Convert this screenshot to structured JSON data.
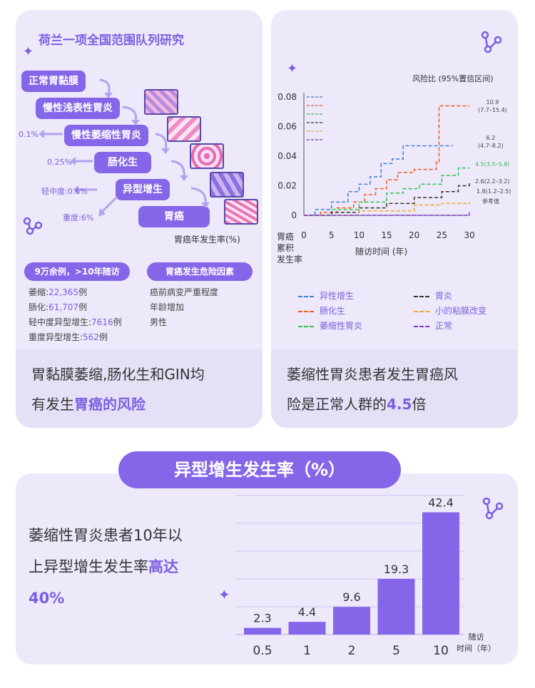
{
  "left_card": {
    "title": "荷兰一项全国范围队列研究",
    "steps": [
      "正常胃黏膜",
      "慢性浅表性胃炎",
      "慢性萎缩性胃炎",
      "肠化生",
      "异型增生",
      "胃癌"
    ],
    "rates": [
      "0.1%",
      "0.25%",
      "轻中度:0.6%",
      "重度:6%"
    ],
    "rate_caption": "胃癌年发生率(%)",
    "pill_cohort": "9万余例，>10年随访",
    "pill_risk": "胃癌发生危险因素",
    "cohort_stats": [
      {
        "label": "萎缩:",
        "value": "22,365",
        "suffix": "例"
      },
      {
        "label": "肠化:",
        "value": "61,707",
        "suffix": "例"
      },
      {
        "label": "轻中度异型增生:",
        "value": "7616",
        "suffix": "例"
      },
      {
        "label": "重度异型增生:",
        "value": "562",
        "suffix": "例"
      }
    ],
    "risk_factors": [
      "癌前病变严重程度",
      "年龄增加",
      "男性"
    ],
    "summary_line1": "胃黏膜萎缩,肠化生和GIN均",
    "summary_line2_a": "有发生",
    "summary_line2_b": "胃癌的风险"
  },
  "right_card": {
    "hr_header": "风险比 (95%置信区间)",
    "y_ticks": [
      "0.08",
      "0.06",
      "0.04",
      "0.02",
      "0"
    ],
    "x_ticks": [
      "0",
      "5",
      "10",
      "15",
      "20",
      "25",
      "30"
    ],
    "ylabel": [
      "胃癌",
      "累积",
      "发生率"
    ],
    "xlabel": "随访时间 (年)",
    "hr_labels": [
      {
        "v": "10.9",
        "ci": "(7.7–15.4)"
      },
      {
        "v": "6.2",
        "ci": "(4.7–8.2)"
      },
      {
        "v": "4.5(3.5–5.8)",
        "ci": ""
      },
      {
        "v": "2.6(2.2–3.2)",
        "ci": ""
      },
      {
        "v": "1.8(1.2–2.5)",
        "ci": ""
      },
      {
        "v": "参考值",
        "ci": ""
      }
    ],
    "legend": [
      {
        "name": "异性增生",
        "color": "#3b7fd9"
      },
      {
        "name": "肠化生",
        "color": "#f05a1a"
      },
      {
        "name": "萎缩性胃炎",
        "color": "#33c24a"
      },
      {
        "name": "胃炎",
        "color": "#3d3326"
      },
      {
        "name": "小的粘膜改变",
        "color": "#f5a623"
      },
      {
        "name": "正常",
        "color": "#7a33d6"
      }
    ],
    "summary_line1": "萎缩性胃炎患者发生胃癌风",
    "summary_line2_a": "险是正常人群的",
    "summary_line2_b": "4.5",
    "summary_line2_c": "倍"
  },
  "bottom": {
    "title": "异型增生发生率（%）",
    "text_line1": "萎缩性胃炎患者10年以",
    "text_line2_a": "上异型增生发生率",
    "text_line2_b": "高达",
    "text_line3": "40%",
    "x_axis_label_1": "随访",
    "x_axis_label_2": "时间（年）"
  },
  "chart_data": [
    {
      "type": "line",
      "title": "",
      "xlabel": "随访时间 (年)",
      "ylabel": "胃癌累积发生率",
      "xlim": [
        0,
        30
      ],
      "ylim": [
        0,
        0.08
      ],
      "series": [
        {
          "name": "异性增生",
          "color": "#3b7fd9",
          "points": [
            [
              0,
              0
            ],
            [
              2,
              0.004
            ],
            [
              5,
              0.009
            ],
            [
              8,
              0.016
            ],
            [
              10,
              0.021
            ],
            [
              12,
              0.026
            ],
            [
              14,
              0.035
            ],
            [
              16,
              0.038
            ],
            [
              18,
              0.047
            ],
            [
              22,
              0.047
            ],
            [
              25,
              0.047
            ],
            [
              27,
              0.047
            ]
          ]
        },
        {
          "name": "肠化生",
          "color": "#f05a1a",
          "points": [
            [
              0,
              0
            ],
            [
              3,
              0.002
            ],
            [
              6,
              0.005
            ],
            [
              9,
              0.009
            ],
            [
              11,
              0.014
            ],
            [
              13,
              0.018
            ],
            [
              15,
              0.024
            ],
            [
              17,
              0.029
            ],
            [
              20,
              0.031
            ],
            [
              22,
              0.031
            ],
            [
              24,
              0.036
            ],
            [
              24.5,
              0.074
            ],
            [
              30,
              0.074
            ]
          ]
        },
        {
          "name": "萎缩性胃炎",
          "color": "#33c24a",
          "points": [
            [
              0,
              0
            ],
            [
              5,
              0.004
            ],
            [
              10,
              0.009
            ],
            [
              15,
              0.015
            ],
            [
              18,
              0.018
            ],
            [
              21,
              0.021
            ],
            [
              25,
              0.027
            ],
            [
              28,
              0.032
            ],
            [
              30,
              0.032
            ]
          ]
        },
        {
          "name": "胃炎",
          "color": "#3d3326",
          "points": [
            [
              0,
              0
            ],
            [
              5,
              0.002
            ],
            [
              10,
              0.005
            ],
            [
              15,
              0.008
            ],
            [
              20,
              0.012
            ],
            [
              25,
              0.016
            ],
            [
              28,
              0.02
            ],
            [
              30,
              0.022
            ]
          ]
        },
        {
          "name": "小的粘膜改变",
          "color": "#f5a623",
          "points": [
            [
              0,
              0
            ],
            [
              10,
              0.003
            ],
            [
              20,
              0.007
            ],
            [
              25,
              0.008
            ],
            [
              30,
              0.009
            ]
          ]
        },
        {
          "name": "正常",
          "color": "#7a33d6",
          "points": [
            [
              0,
              0
            ],
            [
              30,
              0.002
            ]
          ]
        }
      ]
    },
    {
      "type": "bar",
      "title": "异型增生发生率（%）",
      "xlabel": "随访时间（年）",
      "categories": [
        "0.5",
        "1",
        "2",
        "5",
        "10"
      ],
      "values": [
        2.3,
        4.4,
        9.6,
        19.3,
        42.4
      ],
      "ylim": [
        0,
        45
      ],
      "color": "#8566e8"
    }
  ]
}
